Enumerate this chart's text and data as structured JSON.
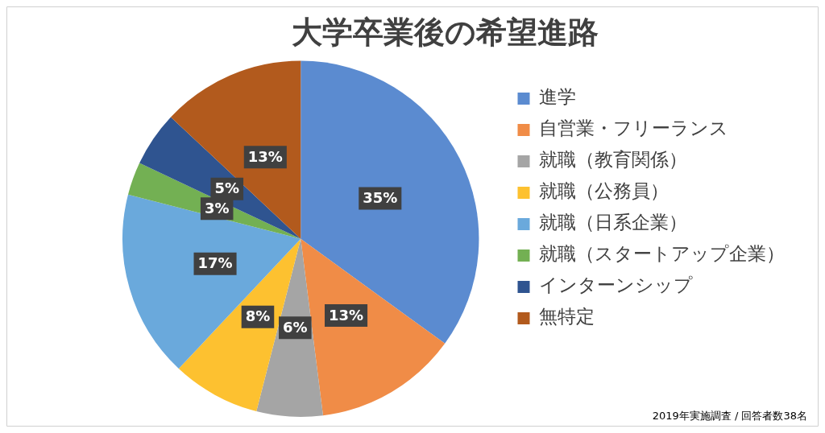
{
  "chart_data": {
    "type": "pie",
    "title": "大学卒業後の希望進路",
    "categories": [
      "進学",
      "自営業・フリーランス",
      "就職（教育関係）",
      "就職（公務員）",
      "就職（日系企業）",
      "就職（スタートアップ企業）",
      "インターンシップ",
      "無特定"
    ],
    "values": [
      35,
      13,
      6,
      8,
      17,
      3,
      5,
      13
    ],
    "colors": [
      "#5b8bd0",
      "#f08c47",
      "#a5a5a5",
      "#fdc130",
      "#6aa9dc",
      "#73b053",
      "#2f5490",
      "#b25a1d"
    ],
    "value_labels": [
      "35%",
      "13%",
      "6%",
      "8%",
      "17%",
      "3%",
      "5%",
      "13%"
    ],
    "legend": "right",
    "annotations": [
      "2019年実施調査 / 回答者数38名"
    ]
  }
}
